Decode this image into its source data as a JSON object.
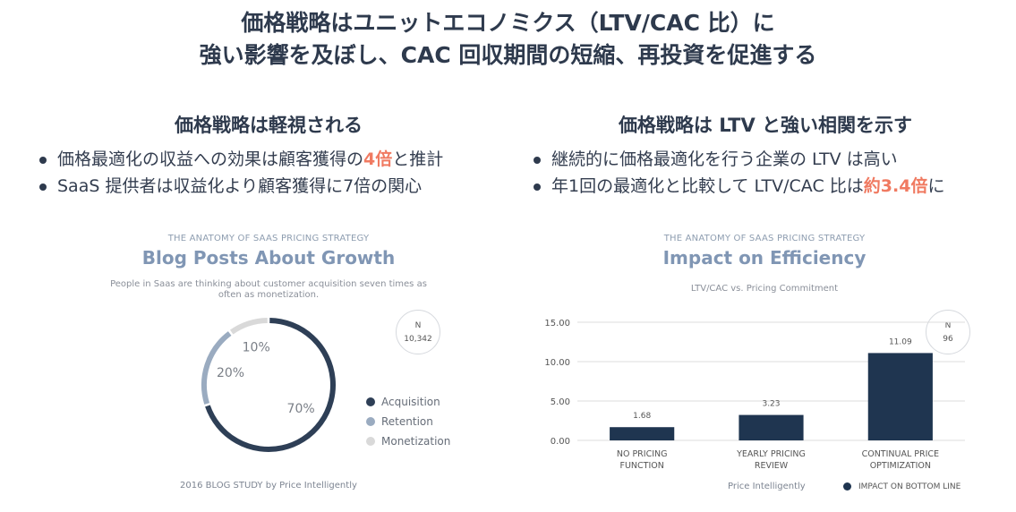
{
  "slide": {
    "title_line1": "価格戦略はユニットエコノミクス（LTV/CAC 比）に",
    "title_line2": "強い影響を及ぼし、CAC 回収期間の短縮、再投資を促進する"
  },
  "left": {
    "heading": "価格戦略は軽視される",
    "bullet1": {
      "before": "価格最適化の収益への効果は顧客獲得の",
      "highlight": "4倍",
      "after": "と推計"
    },
    "bullet2": {
      "text": "SaaS 提供者は収益化より顧客獲得に7倍の関心"
    }
  },
  "right": {
    "heading": "価格戦略は LTV と強い相関を示す",
    "bullet1": {
      "text": "継続的に価格最適化を行う企業の LTV は高い"
    },
    "bullet2": {
      "before": "年1回の最適化と比較して LTV/CAC 比は",
      "highlight": "約3.4倍",
      "after": "に"
    }
  },
  "colors": {
    "dark_navy": "#2e3f56",
    "bar_navy": "#1f3550",
    "steel": "#9aabc0",
    "light_grey": "#d9d9d9",
    "highlight": "#f07a61"
  },
  "chart_data": [
    {
      "type": "pie",
      "kicker": "THE ANATOMY OF SAAS PRICING STRATEGY",
      "title": "Blog Posts About Growth",
      "subtitle_line1": "People in Saas are thinking about customer acquisition seven times as",
      "subtitle_line2": "often as monetization.",
      "badge": {
        "label": "N",
        "value": "10,342"
      },
      "slices": [
        {
          "name": "Acquisition",
          "value": 70,
          "label": "70%",
          "color": "#2e3f56"
        },
        {
          "name": "Retention",
          "value": 20,
          "label": "20%",
          "color": "#9aabc0"
        },
        {
          "name": "Monetization",
          "value": 10,
          "label": "10%",
          "color": "#d9d9d9"
        }
      ],
      "legend_position": "right",
      "footnote": "2016 BLOG STUDY by Price Intelligently"
    },
    {
      "type": "bar",
      "kicker": "THE ANATOMY OF SAAS PRICING STRATEGY",
      "title": "Impact on Efficiency",
      "subtitle": "LTV/CAC vs. Pricing Commitment",
      "badge": {
        "label": "N",
        "value": "96"
      },
      "categories": [
        {
          "line1": "NO PRICING",
          "line2": "FUNCTION"
        },
        {
          "line1": "YEARLY PRICING",
          "line2": "REVIEW"
        },
        {
          "line1": "CONTINUAL PRICE",
          "line2": "OPTIMIZATION"
        }
      ],
      "values": [
        1.68,
        3.23,
        11.09
      ],
      "value_labels": [
        "1.68",
        "3.23",
        "11.09"
      ],
      "ylim": [
        0,
        15
      ],
      "yticks": [
        0,
        5,
        10,
        15
      ],
      "ytick_labels": [
        "0.00",
        "5.00",
        "10.00",
        "15.00"
      ],
      "grid": true,
      "series": [
        {
          "name": "IMPACT ON BOTTOM LINE",
          "color": "#1f3550"
        }
      ],
      "legend_position": "bottom-right",
      "footnote": "Price Intelligently"
    }
  ]
}
